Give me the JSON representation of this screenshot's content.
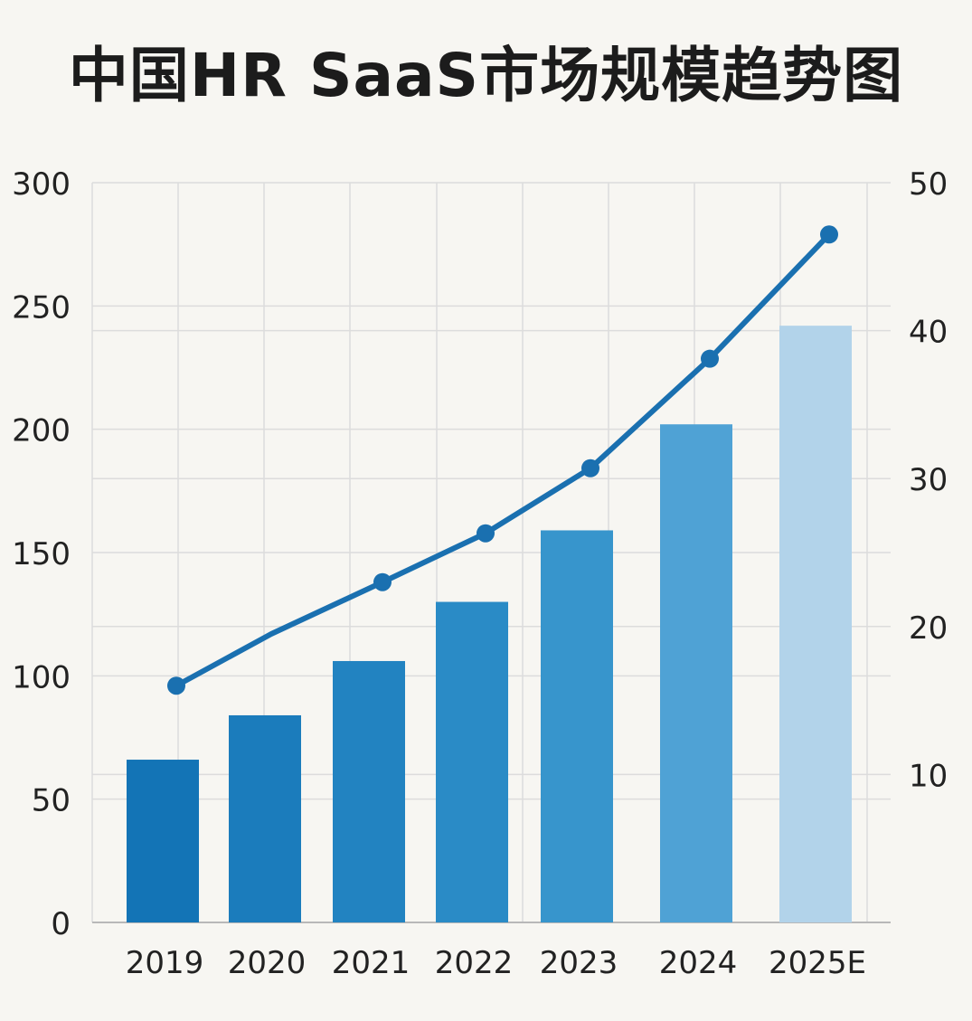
{
  "chart_data": {
    "type": "bar",
    "title": "中国HR SaaS市场规模趋势图",
    "categories": [
      "2019",
      "2020",
      "2021",
      "2022",
      "2023",
      "2024",
      "2025E"
    ],
    "series": [
      {
        "type": "bar",
        "axis": "left",
        "values": [
          66,
          84,
          106,
          130,
          159,
          202,
          242
        ]
      },
      {
        "type": "line",
        "axis": "right",
        "values": [
          16,
          19.5,
          23,
          26.3,
          30.7,
          38.1,
          46.5
        ]
      }
    ],
    "y_left": {
      "ylim": [
        0,
        300
      ],
      "ticks": [
        0,
        50,
        100,
        150,
        200,
        250,
        300
      ]
    },
    "y_right": {
      "ylim": [
        0,
        50
      ],
      "ticks": [
        10,
        20,
        30,
        40,
        50
      ]
    },
    "grid": true,
    "colors": {
      "bars": [
        "#1374b6",
        "#1b7cbc",
        "#2283c1",
        "#2a8bc6",
        "#3795cc",
        "#4fa2d5",
        "#b2d3ea"
      ],
      "line": "#1a70b0",
      "grid": "#dcdcdc"
    }
  }
}
